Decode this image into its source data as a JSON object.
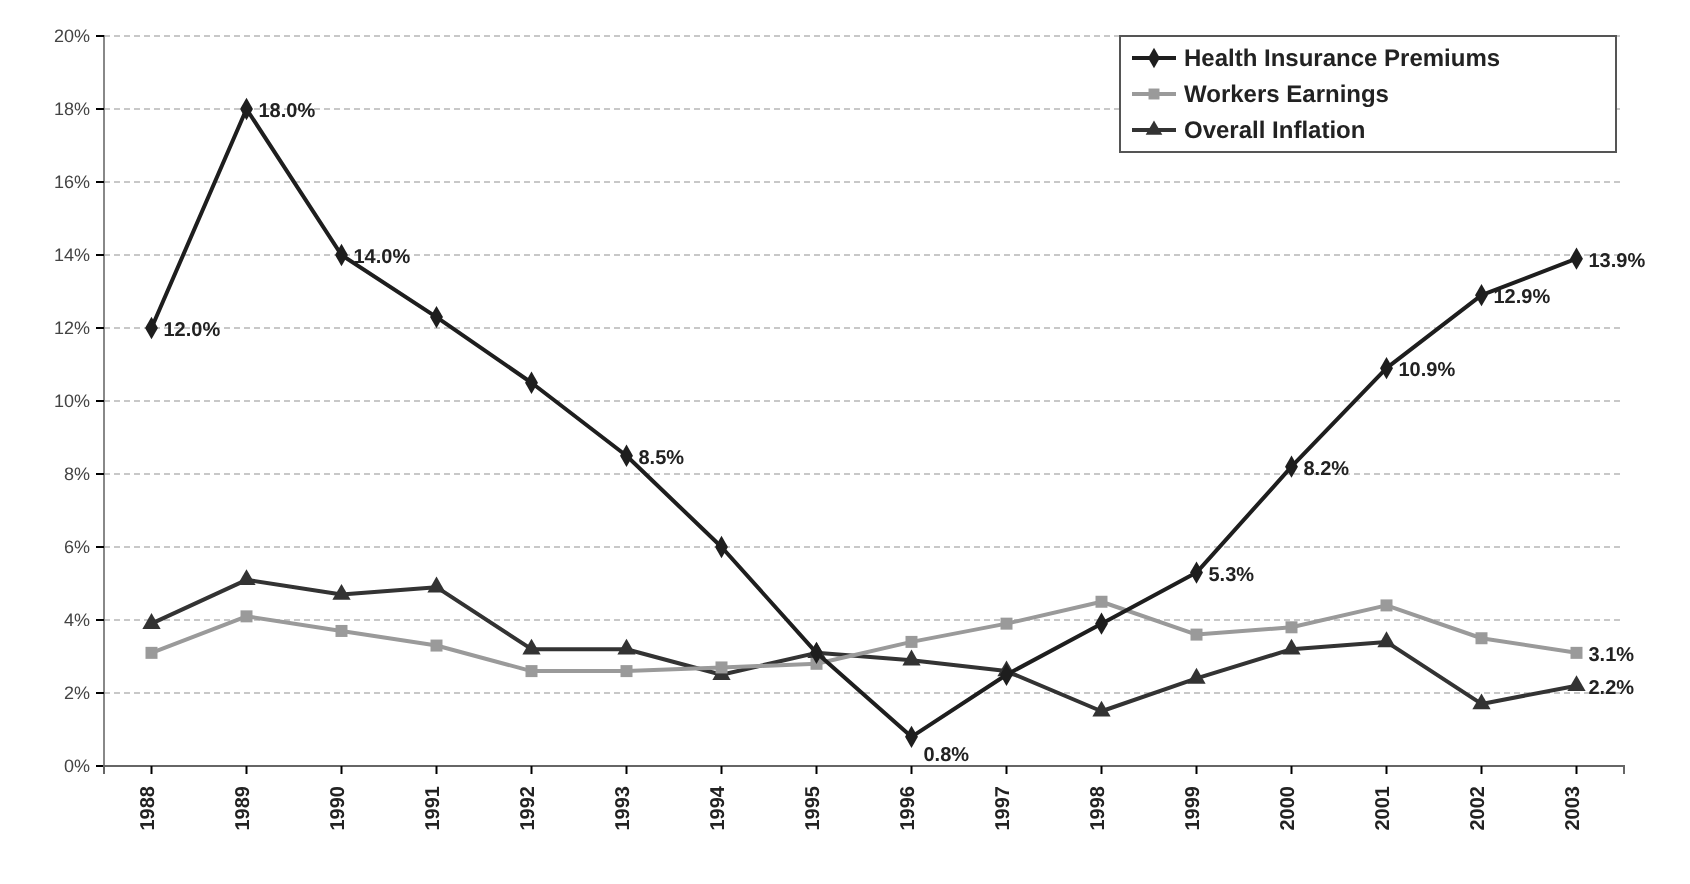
{
  "chart_data": {
    "type": "line",
    "categories": [
      "1988",
      "1989",
      "1990",
      "1991",
      "1992",
      "1993",
      "1994",
      "1995",
      "1996",
      "1997",
      "1998",
      "1999",
      "2000",
      "2001",
      "2002",
      "2003"
    ],
    "series": [
      {
        "name": "Health Insurance Premiums",
        "color": "#1e1e1e",
        "marker": "diamond",
        "values": [
          12.0,
          18.0,
          14.0,
          12.3,
          10.5,
          8.5,
          6.0,
          3.1,
          0.8,
          2.5,
          3.9,
          5.3,
          8.2,
          10.9,
          12.9,
          13.9
        ],
        "value_labels": [
          "12.0%",
          "18.0%",
          "14.0%",
          null,
          null,
          "8.5%",
          null,
          null,
          "0.8%",
          null,
          null,
          "5.3%",
          "8.2%",
          "10.9%",
          "12.9%",
          "13.9%"
        ]
      },
      {
        "name": "Workers Earnings",
        "color": "#9a9a9a",
        "marker": "square",
        "values": [
          3.1,
          4.1,
          3.7,
          3.3,
          2.6,
          2.6,
          2.7,
          2.8,
          3.4,
          3.9,
          4.5,
          3.6,
          3.8,
          4.4,
          3.5,
          3.1
        ],
        "value_labels": [
          null,
          null,
          null,
          null,
          null,
          null,
          null,
          null,
          null,
          null,
          null,
          null,
          null,
          null,
          null,
          "3.1%"
        ]
      },
      {
        "name": "Overall Inflation",
        "color": "#333333",
        "marker": "triangle",
        "values": [
          3.9,
          5.1,
          4.7,
          4.9,
          3.2,
          3.2,
          2.5,
          3.1,
          2.9,
          2.6,
          1.5,
          2.4,
          3.2,
          3.4,
          1.7,
          2.2
        ],
        "value_labels": [
          null,
          null,
          null,
          null,
          null,
          null,
          null,
          null,
          null,
          null,
          null,
          null,
          null,
          null,
          null,
          "2.2%"
        ]
      }
    ],
    "ylim": [
      0,
      20
    ],
    "yticks": [
      {
        "value": 0,
        "label": "0%"
      },
      {
        "value": 2,
        "label": "2%"
      },
      {
        "value": 4,
        "label": "4%"
      },
      {
        "value": 6,
        "label": "6%"
      },
      {
        "value": 8,
        "label": "8%"
      },
      {
        "value": 10,
        "label": "10%"
      },
      {
        "value": 12,
        "label": "12%"
      },
      {
        "value": 14,
        "label": "14%"
      },
      {
        "value": 16,
        "label": "16%"
      },
      {
        "value": 18,
        "label": "18%"
      },
      {
        "value": 20,
        "label": "20%"
      }
    ],
    "grid": "y",
    "legend": "top right",
    "line_style": "solid"
  }
}
